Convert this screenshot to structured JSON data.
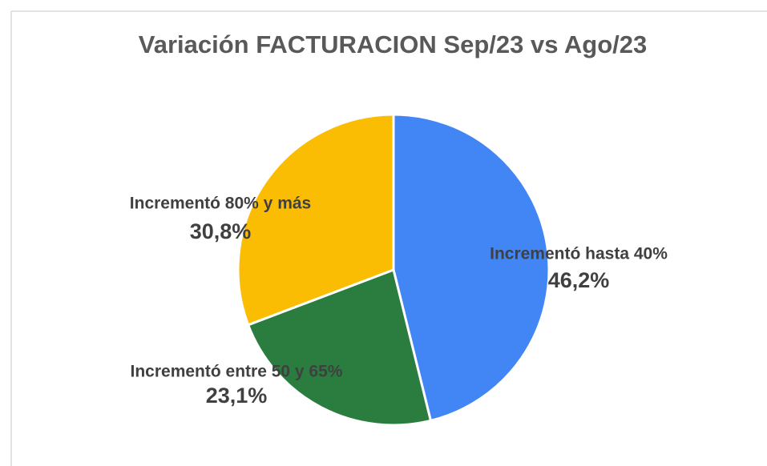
{
  "chart_data": {
    "type": "pie",
    "title": "Variación FACTURACION  Sep/23 vs Ago/23",
    "categories": [
      "Incrementó hasta 40%",
      "Incrementó entre 50 y 65%",
      "Incrementó 80% y más"
    ],
    "values": [
      46.2,
      23.1,
      30.8
    ],
    "value_labels": [
      "46,2%",
      "23,1%",
      "30,8%"
    ],
    "colors": [
      "#4285f4",
      "#2a7d3e",
      "#fbbc04"
    ]
  }
}
